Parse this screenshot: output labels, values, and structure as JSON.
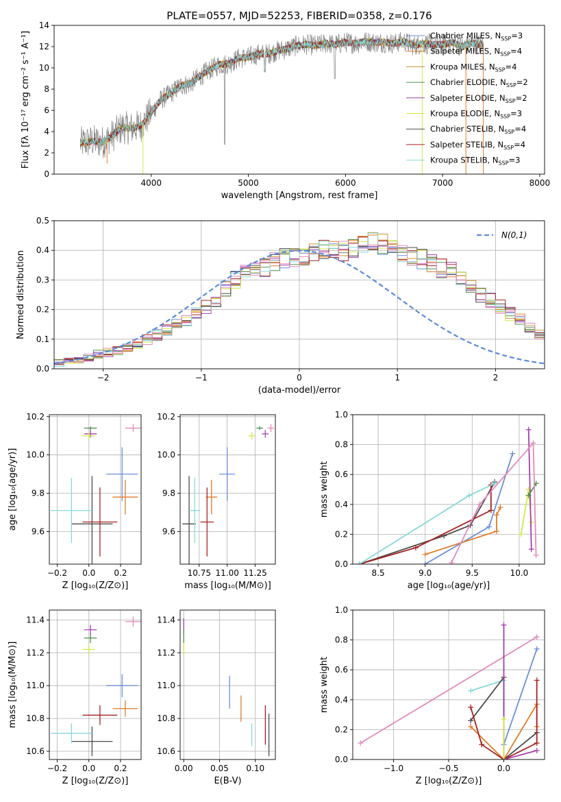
{
  "colors": {
    "chabrier_miles": "#6b8fd8",
    "salpeter_miles": "#e07b26",
    "kroupa_miles": "#c8912f",
    "chabrier_elodie": "#4e8f4e",
    "salpeter_elodie": "#a43fb0",
    "kroupa_elodie": "#d4e84a",
    "chabrier_stelib": "#4a4a4a",
    "salpeter_stelib": "#a82020",
    "kroupa_stelib": "#86d8d8",
    "pink": "#e28ab8",
    "grid": "#b0b0b0"
  },
  "chart_data": [
    {
      "id": "spectrum",
      "type": "line",
      "title": "PLATE=0557, MJD=52253, FIBERID=0358, z=0.176",
      "xlabel": "wavelength [Angstrom, rest frame]",
      "ylabel": "Flux [fλ 10⁻¹⁷ erg cm⁻² s⁻¹ A⁻¹]",
      "xlim": [
        3000,
        8050
      ],
      "ylim": [
        0,
        14
      ],
      "xticks": [
        4000,
        5000,
        6000,
        7000,
        8000
      ],
      "yticks": [
        0,
        2,
        4,
        6,
        8,
        10,
        12,
        14
      ],
      "grid": false,
      "legend_position": "top-right",
      "legend": [
        {
          "label": "Chabrier MILES, N",
          "sub": "SSP",
          "tail": "=3",
          "color_key": "chabrier_miles"
        },
        {
          "label": "Salpeter MILES, N",
          "sub": "SSP",
          "tail": "=4",
          "color_key": "salpeter_miles"
        },
        {
          "label": "Kroupa MILES, N",
          "sub": "SSP",
          "tail": "=4",
          "color_key": "kroupa_miles"
        },
        {
          "label": "Chabrier ELODIE, N",
          "sub": "SSP",
          "tail": "=2",
          "color_key": "chabrier_elodie"
        },
        {
          "label": "Salpeter ELODIE, N",
          "sub": "SSP",
          "tail": "=2",
          "color_key": "salpeter_elodie"
        },
        {
          "label": "Kroupa ELODIE, N",
          "sub": "SSP",
          "tail": "=3",
          "color_key": "kroupa_elodie"
        },
        {
          "label": "Chabrier STELIB, N",
          "sub": "SSP",
          "tail": "=4",
          "color_key": "chabrier_stelib"
        },
        {
          "label": "Salpeter STELIB, N",
          "sub": "SSP",
          "tail": "=4",
          "color_key": "salpeter_stelib"
        },
        {
          "label": "Kroupa STELIB, N",
          "sub": "SSP",
          "tail": "=3",
          "color_key": "kroupa_stelib"
        }
      ],
      "continuum": [
        [
          3270,
          2.9
        ],
        [
          3400,
          3.1
        ],
        [
          3500,
          3.0
        ],
        [
          3600,
          3.6
        ],
        [
          3700,
          4.4
        ],
        [
          3800,
          4.3
        ],
        [
          3900,
          4.6
        ],
        [
          4000,
          5.8
        ],
        [
          4100,
          7.0
        ],
        [
          4200,
          7.6
        ],
        [
          4300,
          8.3
        ],
        [
          4400,
          8.5
        ],
        [
          4500,
          9.2
        ],
        [
          4600,
          9.8
        ],
        [
          4700,
          10.3
        ],
        [
          4800,
          10.4
        ],
        [
          4900,
          10.9
        ],
        [
          5000,
          11.0
        ],
        [
          5100,
          11.3
        ],
        [
          5200,
          11.3
        ],
        [
          5300,
          11.6
        ],
        [
          5400,
          11.8
        ],
        [
          5500,
          12.1
        ],
        [
          5600,
          12.2
        ],
        [
          5700,
          12.1
        ],
        [
          5800,
          12.3
        ],
        [
          5900,
          12.2
        ],
        [
          6000,
          12.4
        ],
        [
          6100,
          12.3
        ],
        [
          6200,
          12.5
        ],
        [
          6300,
          12.4
        ],
        [
          6400,
          12.4
        ],
        [
          6500,
          12.3
        ],
        [
          6600,
          12.5
        ],
        [
          6700,
          12.1
        ],
        [
          6800,
          12.3
        ],
        [
          6900,
          12.2
        ],
        [
          7000,
          12.2
        ],
        [
          7100,
          12.4
        ],
        [
          7200,
          12.0
        ],
        [
          7300,
          12.3
        ],
        [
          7420,
          12.2
        ]
      ]
    },
    {
      "id": "residuals",
      "type": "histogram",
      "xlabel": "(data-model)/error",
      "ylabel": "Normed distribution",
      "xlim": [
        -2.5,
        2.5
      ],
      "ylim": [
        0,
        0.5
      ],
      "xticks": [
        -2,
        -1,
        0,
        1,
        2
      ],
      "yticks": [
        0.0,
        0.1,
        0.2,
        0.3,
        0.4,
        0.5
      ],
      "grid": true,
      "legend_position": "top-right",
      "legend": "N(0,1)",
      "bin_width": 0.1,
      "x_start": -2.5,
      "base_values": [
        0.02,
        0.025,
        0.03,
        0.04,
        0.05,
        0.055,
        0.06,
        0.07,
        0.085,
        0.1,
        0.115,
        0.13,
        0.15,
        0.165,
        0.19,
        0.21,
        0.235,
        0.27,
        0.3,
        0.325,
        0.335,
        0.34,
        0.36,
        0.375,
        0.38,
        0.385,
        0.39,
        0.4,
        0.395,
        0.4,
        0.41,
        0.42,
        0.43,
        0.42,
        0.4,
        0.385,
        0.375,
        0.37,
        0.355,
        0.34,
        0.33,
        0.3,
        0.28,
        0.25,
        0.23,
        0.21,
        0.185,
        0.165,
        0.14,
        0.12,
        0.105,
        0.09,
        0.075,
        0.065,
        0.05,
        0.04,
        0.035,
        0.03,
        0.025,
        0.025
      ]
    },
    {
      "id": "age-vs-Z",
      "type": "errorbar",
      "xlabel": "Z [log₁₀(Z/Z⊙)]",
      "ylabel": "age  [log₁₀(age/yr)]",
      "xlim": [
        -0.25,
        0.33
      ],
      "ylim": [
        9.43,
        10.21
      ],
      "xticks": [
        -0.2,
        0.0,
        0.2
      ],
      "yticks": [
        9.6,
        9.8,
        10.0,
        10.2
      ],
      "grid": true,
      "points": [
        {
          "c": "chabrier_miles",
          "x": 0.21,
          "xe": 0.1,
          "y": 9.9,
          "ye": 0.14
        },
        {
          "c": "salpeter_miles",
          "x": 0.23,
          "xe": 0.08,
          "y": 9.78,
          "ye": 0.09
        },
        {
          "c": "chabrier_elodie",
          "x": 0.01,
          "xe": 0.04,
          "y": 10.14,
          "ye": 0.01
        },
        {
          "c": "salpeter_elodie",
          "x": 0.01,
          "xe": 0.04,
          "y": 10.11,
          "ye": 0.02
        },
        {
          "c": "kroupa_elodie",
          "x": 0.0,
          "xe": 0.04,
          "y": 10.1,
          "ye": 0.02
        },
        {
          "c": "chabrier_stelib",
          "x": 0.02,
          "xe": 0.13,
          "y": 9.64,
          "ye": 0.25
        },
        {
          "c": "salpeter_stelib",
          "x": 0.07,
          "xe": 0.11,
          "y": 9.65,
          "ye": 0.18
        },
        {
          "c": "kroupa_stelib",
          "x": -0.11,
          "xe": 0.13,
          "y": 9.71,
          "ye": 0.17
        },
        {
          "c": "pink",
          "x": 0.28,
          "xe": 0.05,
          "y": 10.14,
          "ye": 0.02
        }
      ]
    },
    {
      "id": "age-vs-mass",
      "type": "errorbar",
      "xlabel": "mass [log₁₀(M/M⊙)]",
      "ylabel": "",
      "xlim": [
        10.58,
        11.43
      ],
      "ylim": [
        9.43,
        10.21
      ],
      "xticks": [
        10.75,
        11.0,
        11.25
      ],
      "yticks": [
        9.6,
        9.8,
        10.0,
        10.2
      ],
      "grid": true,
      "points": [
        {
          "c": "chabrier_miles",
          "x": 11.0,
          "xe": 0.07,
          "y": 9.9,
          "ye": 0.14
        },
        {
          "c": "salpeter_miles",
          "x": 10.86,
          "xe": 0.05,
          "y": 9.78,
          "ye": 0.09
        },
        {
          "c": "salpeter_elodie",
          "x": 11.34,
          "xe": 0.03,
          "y": 10.11,
          "ye": 0.02
        },
        {
          "c": "kroupa_elodie",
          "x": 11.22,
          "xe": 0.03,
          "y": 10.1,
          "ye": 0.02
        },
        {
          "c": "chabrier_elodie",
          "x": 11.29,
          "xe": 0.03,
          "y": 10.14,
          "ye": 0.01
        },
        {
          "c": "chabrier_stelib",
          "x": 10.66,
          "xe": 0.06,
          "y": 9.64,
          "ye": 0.25
        },
        {
          "c": "salpeter_stelib",
          "x": 10.82,
          "xe": 0.06,
          "y": 9.65,
          "ye": 0.18
        },
        {
          "c": "kroupa_stelib",
          "x": 10.71,
          "xe": 0.05,
          "y": 9.71,
          "ye": 0.17
        },
        {
          "c": "pink",
          "x": 11.39,
          "xe": 0.03,
          "y": 10.14,
          "ye": 0.02
        }
      ]
    },
    {
      "id": "weight-vs-age",
      "type": "line",
      "xlabel": "age  [log₁₀(age/yr)]",
      "ylabel": "mass weight",
      "xlim": [
        8.23,
        10.27
      ],
      "ylim": [
        0,
        1.0
      ],
      "xticks": [
        8.5,
        9.0,
        9.5,
        10.0
      ],
      "yticks": [
        0.0,
        0.2,
        0.4,
        0.6,
        0.8,
        1.0
      ],
      "grid": true,
      "series": [
        {
          "c": "chabrier_miles",
          "pts": [
            [
              9.0,
              0.0
            ],
            [
              9.68,
              0.25
            ],
            [
              9.93,
              0.74
            ]
          ]
        },
        {
          "c": "salpeter_miles",
          "pts": [
            [
              9.0,
              0.065
            ],
            [
              9.76,
              0.22
            ],
            [
              9.76,
              0.33
            ],
            [
              9.8,
              0.38
            ]
          ]
        },
        {
          "c": "kroupa_elodie",
          "pts": [
            [
              10.02,
              0.2
            ],
            [
              10.1,
              0.5
            ],
            [
              10.13,
              0.28
            ]
          ]
        },
        {
          "c": "salpeter_elodie",
          "pts": [
            [
              10.13,
              0.1
            ],
            [
              10.1,
              0.9
            ]
          ]
        },
        {
          "c": "chabrier_elodie",
          "pts": [
            [
              10.1,
              0.46
            ],
            [
              10.18,
              0.54
            ]
          ]
        },
        {
          "c": "chabrier_stelib",
          "pts": [
            [
              8.3,
              0.0
            ],
            [
              9.2,
              0.19
            ],
            [
              9.48,
              0.26
            ],
            [
              9.74,
              0.55
            ]
          ]
        },
        {
          "c": "salpeter_stelib",
          "pts": [
            [
              8.3,
              0.0
            ],
            [
              8.9,
              0.11
            ],
            [
              9.7,
              0.36
            ],
            [
              9.7,
              0.53
            ]
          ]
        },
        {
          "c": "kroupa_stelib",
          "pts": [
            [
              8.3,
              0.0
            ],
            [
              9.47,
              0.46
            ],
            [
              9.74,
              0.54
            ]
          ]
        },
        {
          "c": "pink",
          "pts": [
            [
              9.28,
              0.01
            ],
            [
              9.58,
              0.4
            ],
            [
              10.15,
              0.81
            ],
            [
              10.18,
              0.06
            ]
          ]
        }
      ]
    },
    {
      "id": "mass-vs-Z",
      "type": "errorbar",
      "xlabel": "Z [log₁₀(Z/Z⊙)]",
      "ylabel": "mass [log₁₀(M/M⊙)]",
      "xlim": [
        -0.25,
        0.33
      ],
      "ylim": [
        10.55,
        11.46
      ],
      "xticks": [
        -0.2,
        0.0,
        0.2
      ],
      "yticks": [
        10.6,
        10.8,
        11.0,
        11.2,
        11.4
      ],
      "grid": true,
      "points": [
        {
          "c": "chabrier_miles",
          "x": 0.21,
          "xe": 0.1,
          "y": 11.0,
          "ye": 0.07
        },
        {
          "c": "salpeter_miles",
          "x": 0.23,
          "xe": 0.08,
          "y": 10.86,
          "ye": 0.05
        },
        {
          "c": "chabrier_elodie",
          "x": 0.01,
          "xe": 0.04,
          "y": 11.29,
          "ye": 0.03
        },
        {
          "c": "salpeter_elodie",
          "x": 0.01,
          "xe": 0.04,
          "y": 11.34,
          "ye": 0.03
        },
        {
          "c": "kroupa_elodie",
          "x": 0.0,
          "xe": 0.04,
          "y": 11.22,
          "ye": 0.03
        },
        {
          "c": "chabrier_stelib",
          "x": 0.02,
          "xe": 0.13,
          "y": 10.66,
          "ye": 0.09
        },
        {
          "c": "salpeter_stelib",
          "x": 0.07,
          "xe": 0.11,
          "y": 10.82,
          "ye": 0.06
        },
        {
          "c": "kroupa_stelib",
          "x": -0.11,
          "xe": 0.13,
          "y": 10.71,
          "ye": 0.06
        },
        {
          "c": "pink",
          "x": 0.28,
          "xe": 0.05,
          "y": 11.39,
          "ye": 0.03
        }
      ]
    },
    {
      "id": "mass-vs-EBV",
      "type": "errorbar",
      "xlabel": "E(B-V)",
      "ylabel": "",
      "xlim": [
        -0.005,
        0.128
      ],
      "ylim": [
        10.55,
        11.46
      ],
      "xticks": [
        0.0,
        0.05,
        0.1
      ],
      "yticks": [
        10.6,
        10.8,
        11.0,
        11.2,
        11.4
      ],
      "grid": true,
      "points": [
        {
          "c": "chabrier_miles",
          "x": 0.064,
          "xe": 0,
          "y": 10.96,
          "ye": 0.1
        },
        {
          "c": "salpeter_miles",
          "x": 0.08,
          "xe": 0,
          "y": 10.86,
          "ye": 0.08
        },
        {
          "c": "kroupa_stelib",
          "x": 0.095,
          "xe": 0,
          "y": 10.7,
          "ye": 0.07
        },
        {
          "c": "salpeter_stelib",
          "x": 0.114,
          "xe": 0,
          "y": 10.76,
          "ye": 0.12
        },
        {
          "c": "chabrier_stelib",
          "x": 0.119,
          "xe": 0,
          "y": 10.7,
          "ye": 0.13
        },
        {
          "c": "salpeter_elodie",
          "x": 0.0,
          "xe": 0,
          "y": 11.36,
          "ye": 0.05
        },
        {
          "c": "kroupa_elodie",
          "x": 0.0,
          "xe": 0,
          "y": 11.24,
          "ye": 0.05
        },
        {
          "c": "chabrier_elodie",
          "x": 0.0,
          "xe": 0,
          "y": 11.3,
          "ye": 0.04
        }
      ]
    },
    {
      "id": "weight-vs-Z",
      "type": "line",
      "xlabel": "Z [log₁₀(Z/Z⊙)]",
      "ylabel": "mass weight",
      "xlim": [
        -1.37,
        0.37
      ],
      "ylim": [
        0,
        1.0
      ],
      "xticks": [
        -1.0,
        -0.5,
        0.0
      ],
      "yticks": [
        0.0,
        0.2,
        0.4,
        0.6,
        0.8,
        1.0
      ],
      "grid": true,
      "series": [
        {
          "c": "pink",
          "pts": [
            [
              -1.3,
              0.11
            ],
            [
              0.3,
              0.82
            ]
          ]
        },
        {
          "c": "chabrier_miles",
          "pts": [
            [
              0.0,
              0.1
            ],
            [
              0.3,
              0.74
            ]
          ]
        },
        {
          "c": "kroupa_stelib",
          "pts": [
            [
              -0.3,
              0.46
            ],
            [
              0.0,
              0.53
            ],
            [
              0.0,
              0.0
            ]
          ]
        },
        {
          "c": "chabrier_stelib",
          "pts": [
            [
              -0.3,
              0.26
            ],
            [
              0.0,
              0.55
            ],
            [
              0.0,
              0.0
            ],
            [
              0.3,
              0.18
            ]
          ]
        },
        {
          "c": "salpeter_miles",
          "pts": [
            [
              -0.3,
              0.22
            ],
            [
              0.0,
              0.0
            ],
            [
              0.3,
              0.37
            ],
            [
              0.3,
              0.22
            ]
          ]
        },
        {
          "c": "salpeter_stelib",
          "pts": [
            [
              -0.3,
              0.35
            ],
            [
              -0.2,
              0.1
            ],
            [
              0.0,
              0.0
            ],
            [
              0.3,
              0.11
            ],
            [
              0.3,
              0.53
            ]
          ]
        },
        {
          "c": "salpeter_elodie",
          "pts": [
            [
              0.0,
              0.9
            ],
            [
              0.0,
              0.0
            ],
            [
              0.3,
              0.06
            ]
          ]
        },
        {
          "c": "kroupa_elodie",
          "pts": [
            [
              0.0,
              0.27
            ],
            [
              0.0,
              0.0
            ]
          ]
        }
      ]
    }
  ]
}
